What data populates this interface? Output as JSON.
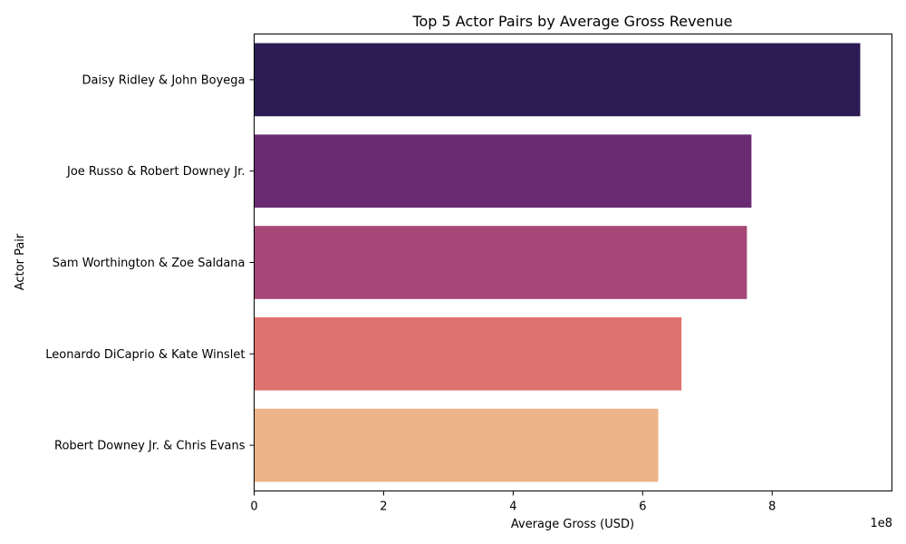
{
  "chart_data": {
    "type": "bar",
    "orientation": "horizontal",
    "title": "Top 5 Actor Pairs by Average Gross Revenue",
    "xlabel": "Average Gross (USD)",
    "ylabel": "Actor Pair",
    "x_scale_label": "1e8",
    "xlim": [
      0,
      985000000
    ],
    "x_ticks": [
      0,
      200000000,
      400000000,
      600000000,
      800000000
    ],
    "x_tick_labels": [
      "0",
      "2",
      "4",
      "6",
      "8"
    ],
    "grid": false,
    "categories": [
      "Daisy Ridley & John Boyega",
      "Joe Russo & Robert Downey Jr.",
      "Sam Worthington & Zoe Saldana",
      "Leonardo DiCaprio & Kate Winslet",
      "Robert Downey Jr. & Chris Evans"
    ],
    "values": [
      936000000,
      768000000,
      761000000,
      660000000,
      624000000
    ],
    "colors": [
      "#2d1b54",
      "#6a2b73",
      "#a54878",
      "#df726e",
      "#edb389"
    ]
  }
}
